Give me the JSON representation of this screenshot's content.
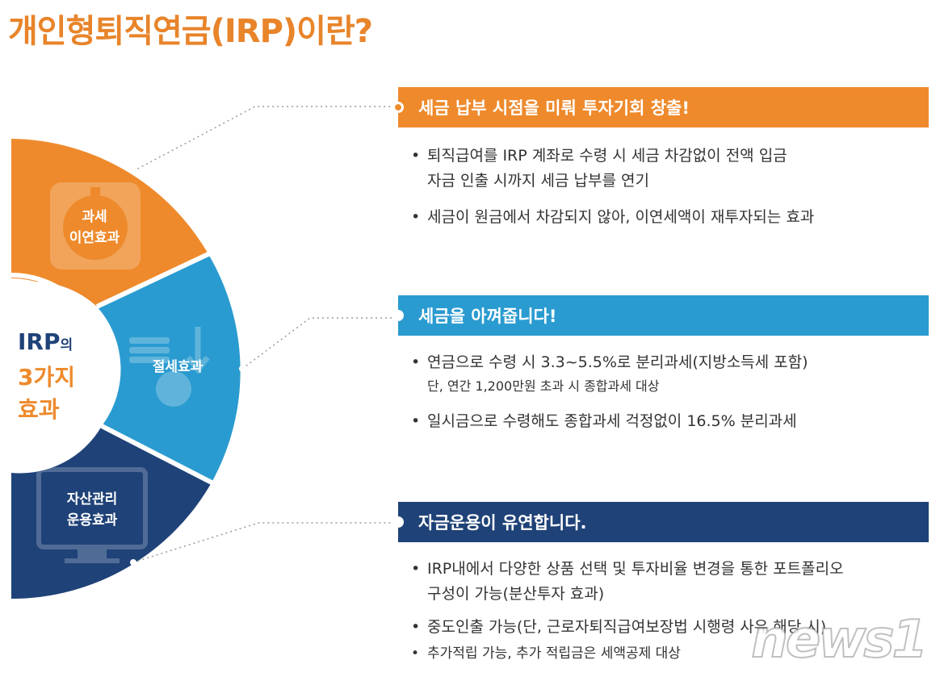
{
  "title": "개인형퇴직연금(IRP)이란?",
  "colors": {
    "orange": "#ee8a2c",
    "blue": "#2a9bd0",
    "navy": "#1f4278",
    "title": "#e8842a"
  },
  "wheel": {
    "center": {
      "line1": "IRP",
      "line1_suffix": "의",
      "line2": "3가지",
      "line3": "효과"
    },
    "segments": [
      {
        "id": "tax-deferral",
        "line1": "과세",
        "line2": "이연효과",
        "color": "#ee8a2c",
        "icon": "timer-icon"
      },
      {
        "id": "tax-saving",
        "line1": "절세효과",
        "color": "#2a9bd0",
        "icon": "coins-icon"
      },
      {
        "id": "asset-management",
        "line1": "자산관리",
        "line2": "운용효과",
        "color": "#1f4278",
        "icon": "monitor-icon"
      }
    ]
  },
  "sections": [
    {
      "heading": "세금 납부 시점을 미뤄 투자기회 창출!",
      "color": "#ee8a2c",
      "bullets": [
        {
          "text": "퇴직급여를 IRP 계좌로 수령 시 세금 차감없이 전액 입금",
          "sub": "자금 인출 시까지 세금 납부를 연기"
        },
        {
          "text": "세금이 원금에서 차감되지 않아, 이연세액이 재투자되는 효과"
        }
      ]
    },
    {
      "heading": "세금을 아껴줍니다!",
      "color": "#2a9bd0",
      "bullets": [
        {
          "text": "연금으로 수령 시 3.3~5.5%로 분리과세(지방소득세 포함)",
          "note": "단, 연간 1,200만원 초과 시 종합과세 대상"
        },
        {
          "text": "일시금으로 수령해도 종합과세 걱정없이 16.5% 분리과세"
        }
      ]
    },
    {
      "heading": "자금운용이 유연합니다.",
      "color": "#1f4278",
      "bullets": [
        {
          "text": "IRP내에서 다양한 상품 선택 및 투자비율 변경을 통한 포트폴리오",
          "sub": "구성이 가능(분산투자 효과)"
        },
        {
          "text": "중도인출 가능(단, 근로자퇴직급여보장법 시행령 사유 해당 시)"
        },
        {
          "text": "추가적립 가능, 추가 적립금은 세액공제 대상"
        }
      ]
    }
  ],
  "watermark": "news1"
}
